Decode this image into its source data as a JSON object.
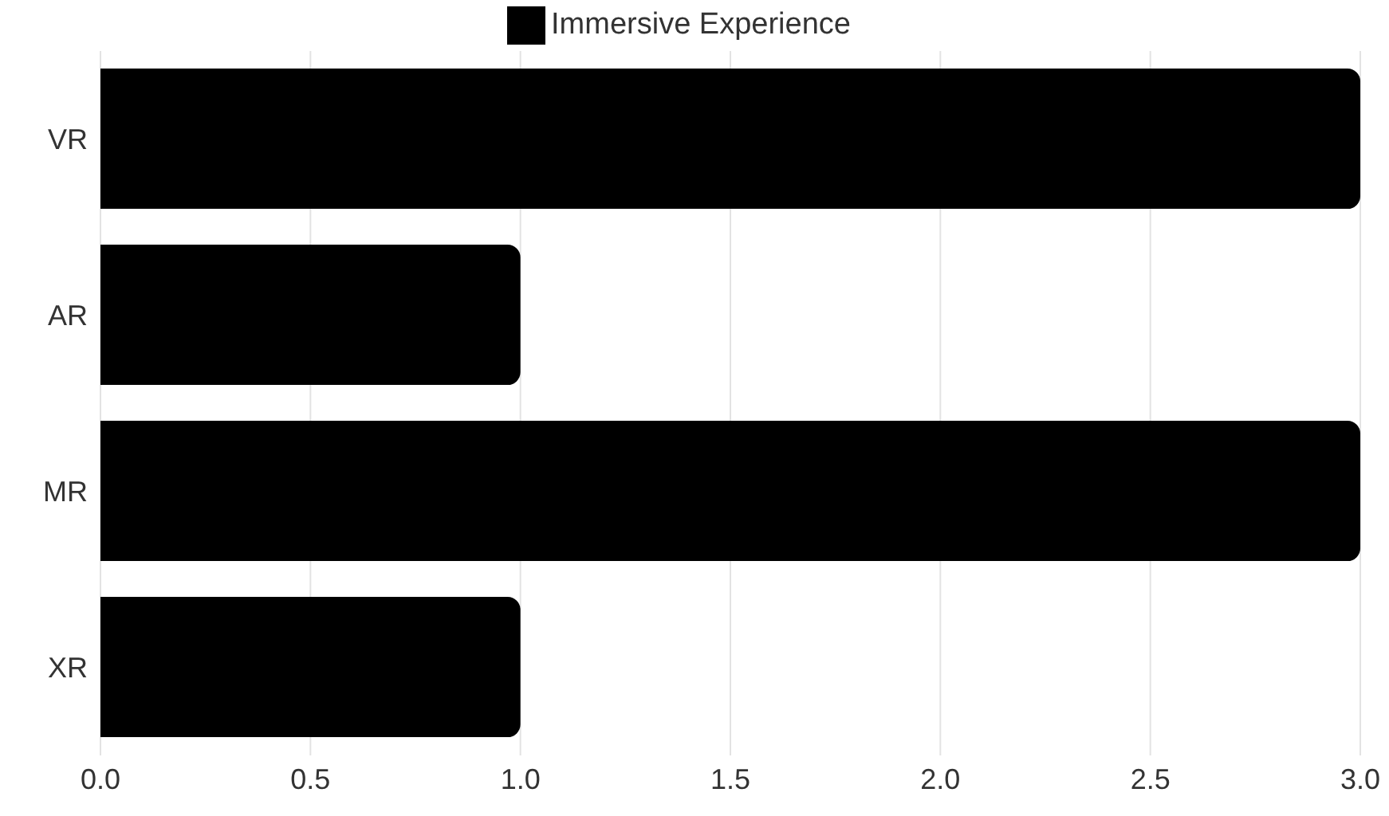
{
  "chart_data": {
    "type": "bar",
    "orientation": "horizontal",
    "categories": [
      "VR",
      "AR",
      "MR",
      "XR"
    ],
    "series": [
      {
        "name": "Immersive Experience",
        "color": "#000000",
        "values": [
          3,
          1,
          3,
          1
        ]
      }
    ],
    "xlim": [
      0,
      3
    ],
    "xticks": [
      {
        "value": 0,
        "label": "0.0"
      },
      {
        "value": 0.5,
        "label": "0.5"
      },
      {
        "value": 1,
        "label": "1.0"
      },
      {
        "value": 1.5,
        "label": "1.5"
      },
      {
        "value": 2,
        "label": "2.0"
      },
      {
        "value": 2.5,
        "label": "2.5"
      },
      {
        "value": 3,
        "label": "3.0"
      }
    ],
    "grid": "x",
    "legend": "top"
  }
}
